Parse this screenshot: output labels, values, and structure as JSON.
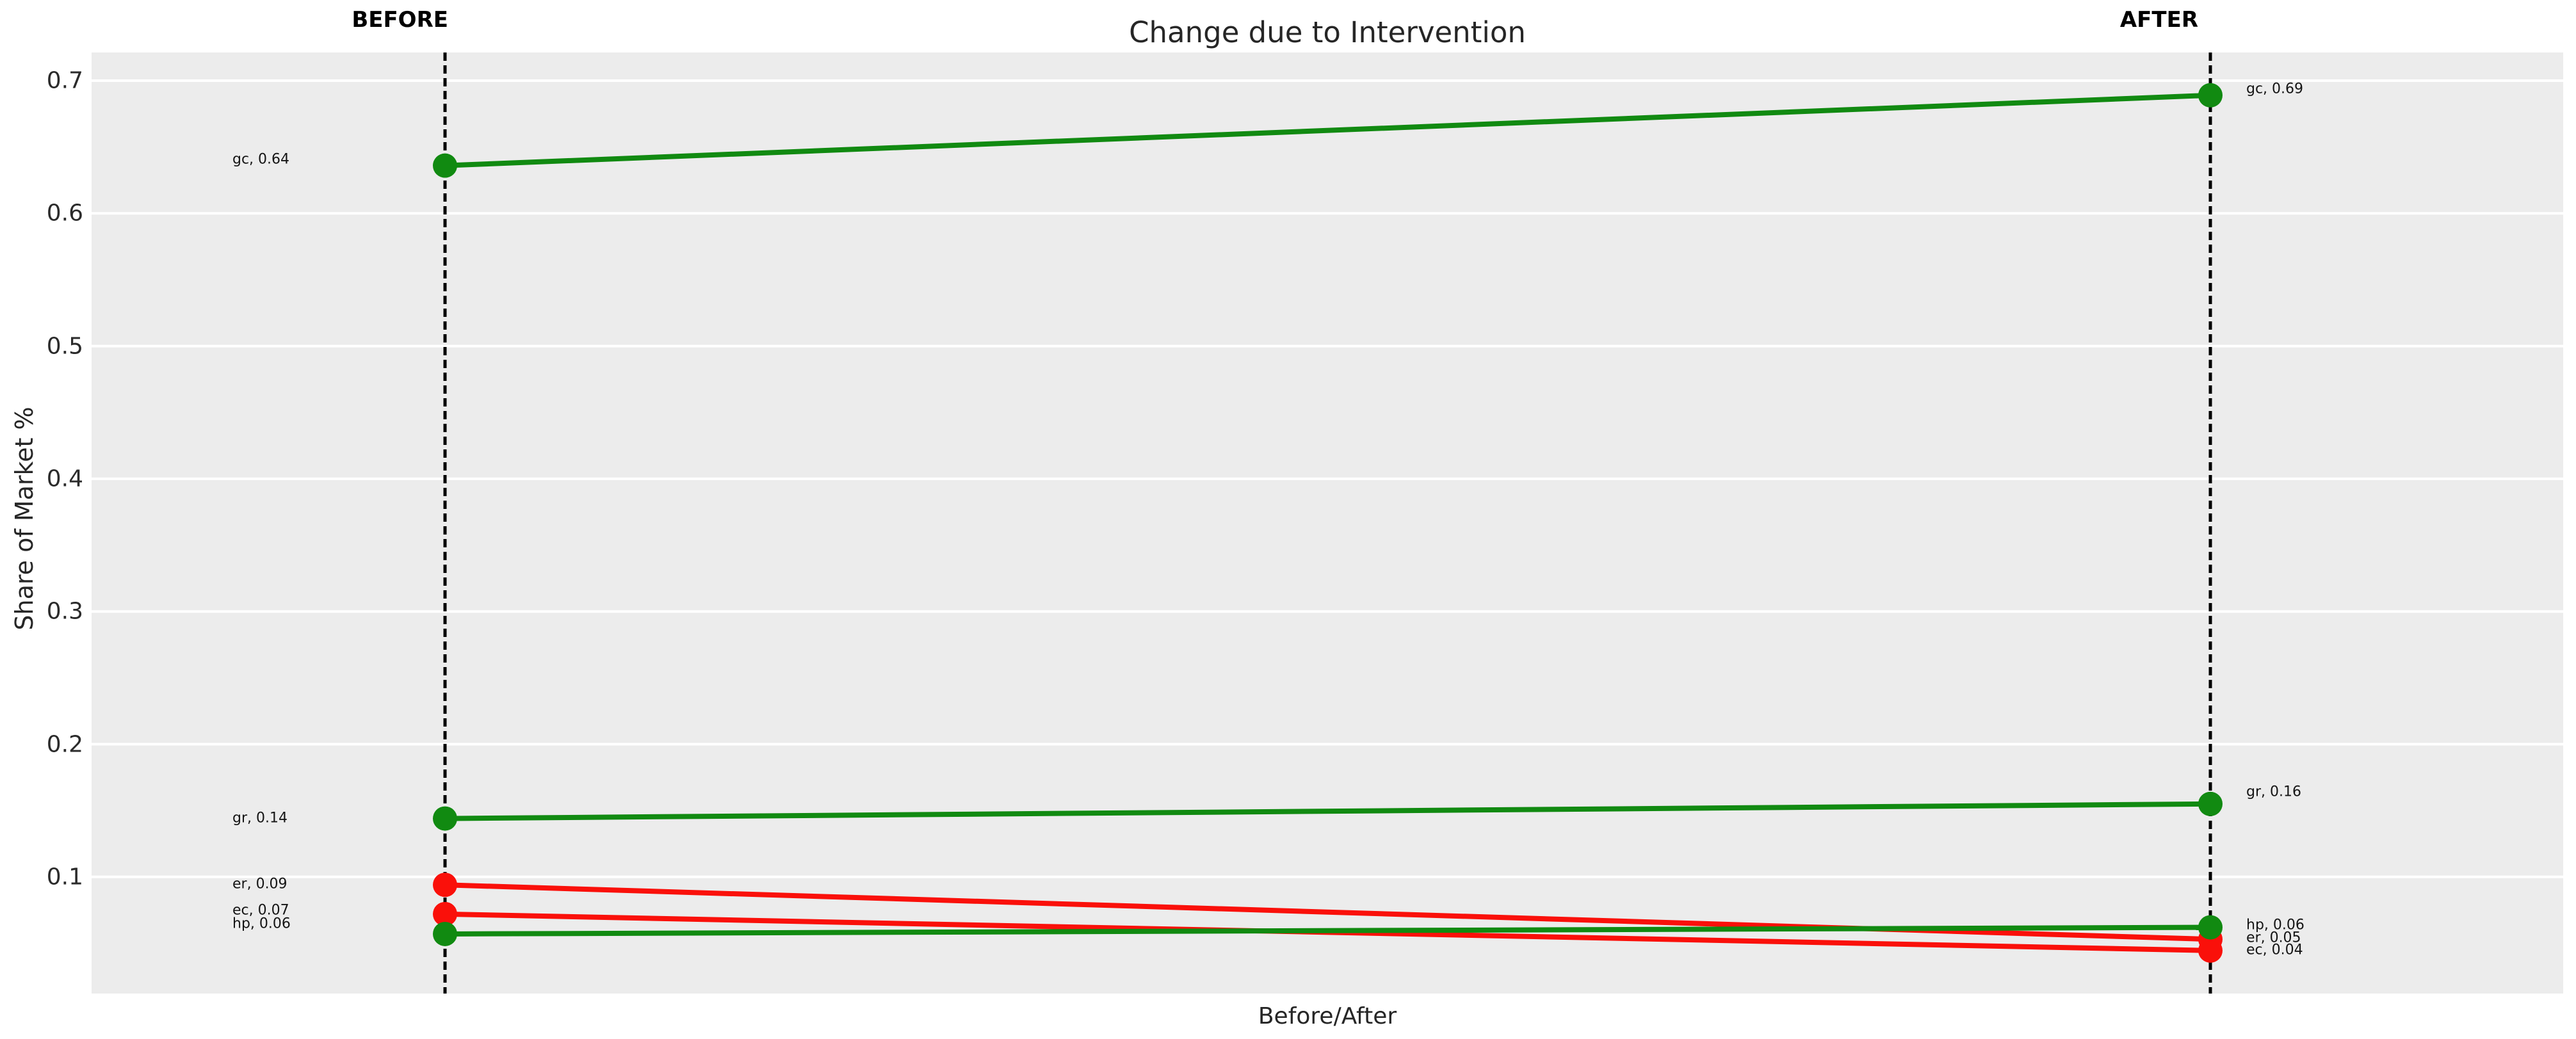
{
  "figure": {
    "title": "Change due to Intervention",
    "before_header": "BEFORE",
    "after_header": "AFTER",
    "x_axis_label": "Before/After",
    "y_axis_label": "Share of Market %"
  },
  "colors": {
    "increase_green": "#118a11",
    "decrease_red": "#fa100a",
    "plot_background": "#ececec",
    "gridline": "#ffffff",
    "guide_line": "#000000",
    "text": "#262626"
  },
  "chart_data": {
    "type": "line",
    "subtype": "slopegraph",
    "title": "Change due to Intervention",
    "xlabel": "Before/After",
    "ylabel": "Share of Market %",
    "categories": [
      "BEFORE",
      "AFTER"
    ],
    "y_ticks": [
      0.1,
      0.2,
      0.3,
      0.4,
      0.5,
      0.6,
      0.7
    ],
    "ylim": [
      0.012,
      0.721
    ],
    "grid": true,
    "guide_lines": [
      "BEFORE",
      "AFTER"
    ],
    "series": [
      {
        "name": "gc",
        "values": [
          0.636,
          0.689
        ],
        "point_labels": [
          "gc, 0.64",
          "gc, 0.69"
        ],
        "trend": "increase",
        "color": "#118a11"
      },
      {
        "name": "gr",
        "values": [
          0.144,
          0.155
        ],
        "point_labels": [
          "gr, 0.14",
          "gr, 0.16"
        ],
        "trend": "increase",
        "color": "#118a11"
      },
      {
        "name": "er",
        "values": [
          0.094,
          0.053
        ],
        "point_labels": [
          "er, 0.09",
          "er, 0.05"
        ],
        "trend": "decrease",
        "color": "#fa100a"
      },
      {
        "name": "ec",
        "values": [
          0.072,
          0.0445
        ],
        "point_labels": [
          "ec, 0.07",
          "ec, 0.04"
        ],
        "trend": "decrease",
        "color": "#fa100a"
      },
      {
        "name": "hp",
        "values": [
          0.057,
          0.062
        ],
        "point_labels": [
          "hp, 0.06",
          "hp, 0.06"
        ],
        "trend": "increase",
        "color": "#118a11"
      }
    ]
  }
}
